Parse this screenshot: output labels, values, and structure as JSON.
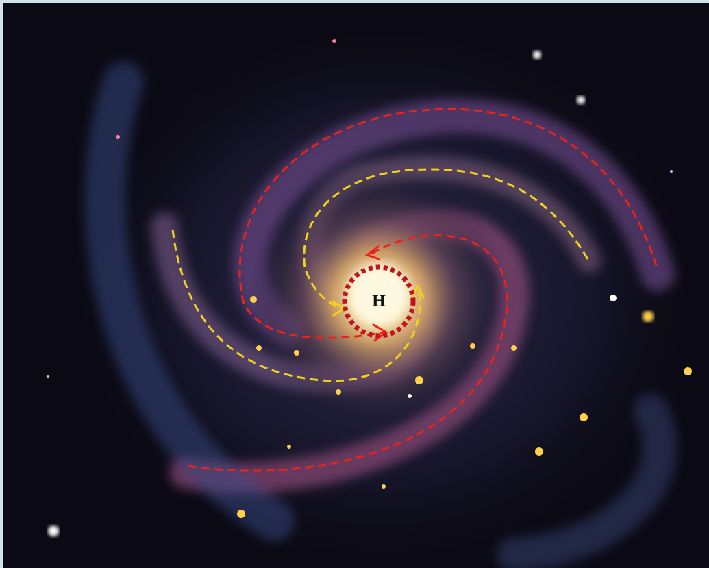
{
  "label": "H"
}
